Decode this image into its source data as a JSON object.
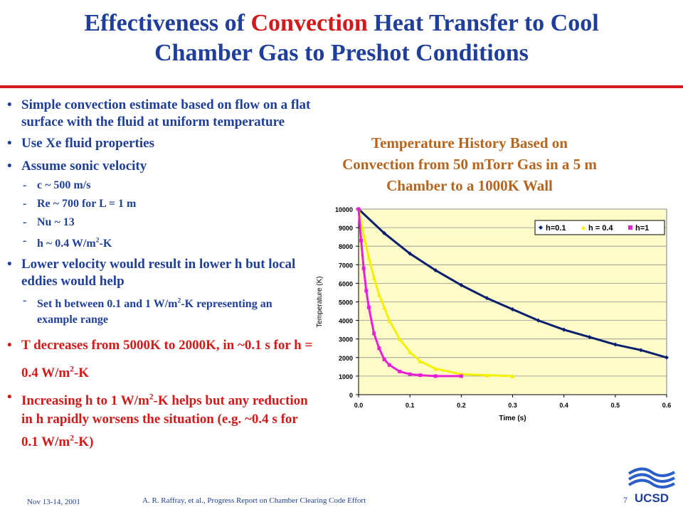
{
  "slide": {
    "title_line1_a": "Effectiveness of ",
    "title_line1_accent": "Convection",
    "title_line1_b": " Heat Transfer to Cool",
    "title_line2": "Chamber Gas to Preshot Conditions",
    "footer_date": "Nov 13-14, 2001",
    "footer_credit": "A. R. Raffray, et al., Progress Report on Chamber Clearing Code Effort",
    "page_number": "7",
    "logo_text": "UCSD"
  },
  "bullets": {
    "b1": "Simple convection estimate based on flow on a flat surface with the fluid at uniform temperature",
    "b2": "Use Xe fluid properties",
    "b3": "Assume sonic velocity",
    "s1": "c ~ 500 m/s",
    "s2": "Re ~ 700 for L = 1 m",
    "s3": "Nu ~ 13",
    "s4a": "h ~ 0.4 W/m",
    "s4sup": "2",
    "s4b": "-K",
    "b4": "Lower velocity would result in lower h but local eddies would help",
    "s5a": "Set h between 0.1 and 1 W/m",
    "s5sup": "2",
    "s5b": "-K representing an example range",
    "b5a": "T decreases from 5000K to 2000K, in ~0.1 s for h = 0.4 W/m",
    "b5sup": "2",
    "b5b": "-K",
    "b6a": "Increasing h to 1 W/m",
    "b6sup1": "2",
    "b6b": "-K helps but any reduction in h rapidly worsens the situation (e.g. ~0.4 s for 0.1 W/m",
    "b6sup2": "2",
    "b6c": "-K)",
    "bullet_glyph": "•",
    "dash_glyph": "-"
  },
  "chart_title": {
    "line1": "Temperature History Based on",
    "line2": "Convection from 50 mTorr Gas in a 5 m",
    "line3": "Chamber to a 1000K Wall"
  },
  "chart_data": {
    "type": "scatter",
    "xlabel": "Time (s)",
    "ylabel": "Temperature (K)",
    "xlim": [
      0,
      0.6
    ],
    "ylim": [
      0,
      10000
    ],
    "xticks": [
      "0.0",
      "0.1",
      "0.2",
      "0.3",
      "0.4",
      "0.5",
      "0.6"
    ],
    "yticks": [
      "0",
      "1000",
      "2000",
      "3000",
      "4000",
      "5000",
      "6000",
      "7000",
      "8000",
      "9000",
      "10000"
    ],
    "grid": true,
    "legend_position": "top-right",
    "plot_background": "#fdfbc8",
    "series": [
      {
        "name": "h=0.1",
        "color": "#0a1f6e",
        "marker": "diamond",
        "x": [
          0,
          0.05,
          0.1,
          0.15,
          0.2,
          0.25,
          0.3,
          0.35,
          0.4,
          0.45,
          0.5,
          0.55,
          0.6
        ],
        "y": [
          10000,
          8700,
          7600,
          6700,
          5900,
          5200,
          4600,
          4000,
          3500,
          3100,
          2700,
          2400,
          2000
        ]
      },
      {
        "name": "h = 0.4",
        "color": "#f5f000",
        "marker": "triangle",
        "x": [
          0,
          0.01,
          0.02,
          0.03,
          0.04,
          0.05,
          0.06,
          0.08,
          0.1,
          0.12,
          0.15,
          0.2,
          0.25,
          0.3
        ],
        "y": [
          10000,
          8600,
          7400,
          6300,
          5400,
          4700,
          4000,
          3000,
          2300,
          1800,
          1400,
          1100,
          1050,
          1000
        ]
      },
      {
        "name": "h=1",
        "color": "#e81fd6",
        "marker": "square",
        "x": [
          0,
          0.005,
          0.01,
          0.015,
          0.02,
          0.03,
          0.04,
          0.05,
          0.06,
          0.08,
          0.1,
          0.12,
          0.15,
          0.2
        ],
        "y": [
          10000,
          8300,
          6800,
          5600,
          4700,
          3300,
          2500,
          1900,
          1600,
          1250,
          1100,
          1050,
          1000,
          1000
        ]
      }
    ]
  }
}
